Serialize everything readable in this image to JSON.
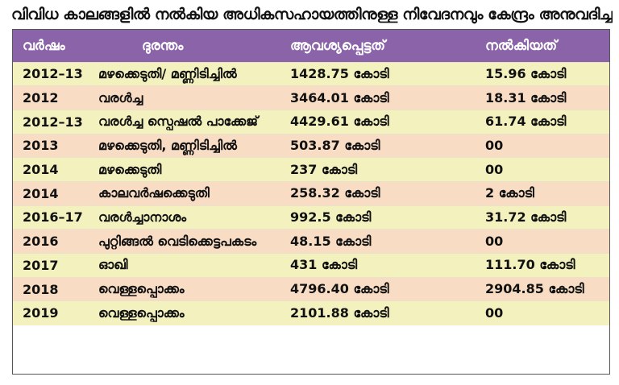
{
  "title": "വിവിധ കാലങ്ങളിൽ നൽകിയ അധികസഹായത്തിനുള്ള നിവേദനവും കേന്ദ്രം അനുവദിച്ചതും",
  "columns": [
    "വർഷം",
    "ദുരന്തം",
    "ആവശ്യപ്പെട്ടത്",
    "നൽകിയത്"
  ],
  "header_color": "#8a63a8",
  "row_colors": [
    "#f3f1bd",
    "#f8dcc4"
  ],
  "rows": [
    {
      "year": "2012–13",
      "disaster": "മഴക്കെടുതി/ മണ്ണിടിച്ചിൽ",
      "requested": "1428.75 കോടി",
      "given": "15.96 കോടി"
    },
    {
      "year": "2012",
      "disaster": "വരൾച്ച",
      "requested": "3464.01 കോടി",
      "given": "18.31 കോടി"
    },
    {
      "year": "2012–13",
      "disaster": "വരൾച്ച സ്പെഷൽ പാക്കേജ്",
      "requested": "4429.61 കോടി",
      "given": "61.74 കോടി"
    },
    {
      "year": "2013",
      "disaster": "മഴക്കെടുതി, മണ്ണിടിച്ചിൽ",
      "requested": "503.87 കോടി",
      "given": "00"
    },
    {
      "year": "2014",
      "disaster": "മഴക്കെടുതി",
      "requested": "237 കോടി",
      "given": "00"
    },
    {
      "year": "2014",
      "disaster": "കാലവർഷക്കെടുതി",
      "requested": "258.32 കോടി",
      "given": "2 കോടി"
    },
    {
      "year": "2016–17",
      "disaster": "വരൾച്ചാനാശം",
      "requested": "992.5 കോടി",
      "given": "31.72 കോടി"
    },
    {
      "year": "2016",
      "disaster": "പുറ്റിങ്ങൽ വെടിക്കെട്ടപകടം",
      "requested": "48.15 കോടി",
      "given": "00"
    },
    {
      "year": "2017",
      "disaster": "ഓഖി",
      "requested": "431 കോടി",
      "given": "111.70 കോടി"
    },
    {
      "year": "2018",
      "disaster": "വെള്ളപ്പൊക്കം",
      "requested": "4796.40 കോടി",
      "given": "2904.85 കോടി"
    },
    {
      "year": "2019",
      "disaster": "വെള്ളപ്പൊക്കം",
      "requested": "2101.88 കോടി",
      "given": "00"
    }
  ]
}
